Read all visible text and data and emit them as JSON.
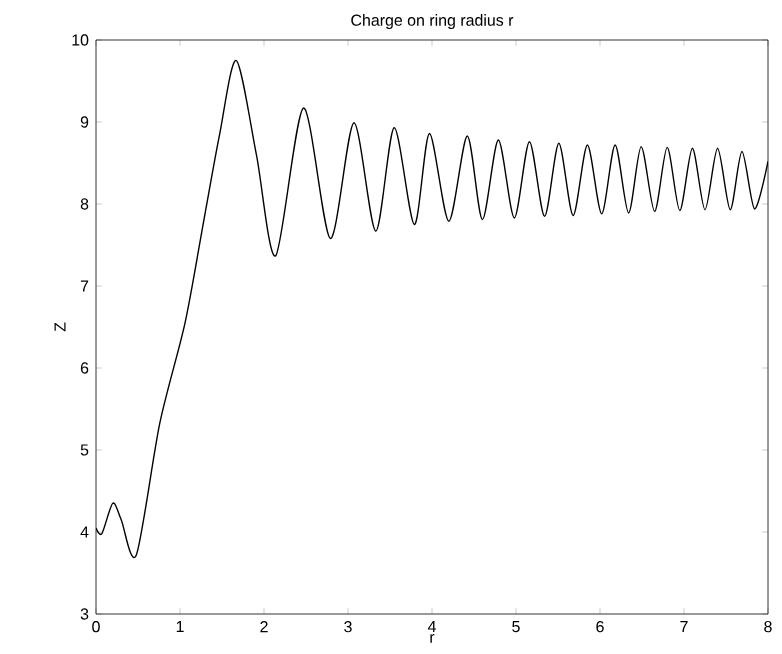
{
  "chart_data": {
    "type": "line",
    "title": "Charge on ring radius r",
    "xlabel": "r",
    "ylabel": "Z",
    "x": [
      0,
      0.07,
      0.2,
      0.3,
      0.48,
      0.76,
      1.06,
      1.28,
      1.47,
      1.67,
      1.91,
      2.14,
      2.47,
      2.79,
      3.07,
      3.33,
      3.55,
      3.79,
      3.97,
      4.2,
      4.42,
      4.6,
      4.79,
      4.98,
      5.16,
      5.34,
      5.51,
      5.68,
      5.85,
      6.02,
      6.18,
      6.34,
      6.49,
      6.65,
      6.8,
      6.95,
      7.1,
      7.25,
      7.4,
      7.55,
      7.69,
      7.84,
      8.0
    ],
    "series": [
      {
        "color": "#000000",
        "values": [
          4.05,
          3.98,
          4.35,
          4.15,
          3.72,
          5.33,
          6.55,
          7.78,
          8.84,
          9.75,
          8.6,
          7.37,
          9.17,
          7.58,
          8.99,
          7.67,
          8.93,
          7.75,
          8.86,
          7.79,
          8.83,
          7.81,
          8.78,
          7.83,
          8.76,
          7.85,
          8.74,
          7.86,
          8.72,
          7.88,
          8.72,
          7.89,
          8.7,
          7.91,
          8.69,
          7.92,
          8.68,
          7.93,
          8.68,
          7.93,
          8.64,
          7.94,
          8.52
        ]
      }
    ],
    "xlim": [
      0,
      8
    ],
    "ylim": [
      3,
      10
    ],
    "xticks": [
      0,
      1,
      2,
      3,
      4,
      5,
      6,
      7,
      8
    ],
    "yticks": [
      3,
      4,
      5,
      6,
      7,
      8,
      9,
      10
    ],
    "marker": "none",
    "line_style": "solid"
  }
}
